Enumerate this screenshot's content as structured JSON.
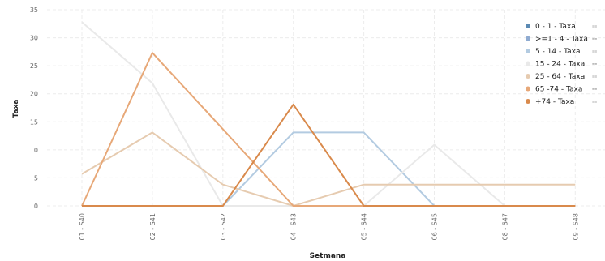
{
  "chart_data": {
    "type": "line",
    "xlabel": "Setmana",
    "ylabel": "Taxa",
    "ylim": [
      0,
      35
    ],
    "yticks": [
      0,
      5,
      10,
      15,
      20,
      25,
      30,
      35
    ],
    "grid": true,
    "legend_position": "top-right",
    "categories": [
      "01 - S40",
      "02 - S41",
      "03 - S42",
      "04 - S43",
      "05 - S44",
      "06 - S45",
      "08 - S47",
      "09 - S48"
    ],
    "series": [
      {
        "name": "0 - 1 - Taxa",
        "color": "#5b8ab3",
        "values": [
          0,
          0,
          0,
          0,
          0,
          0,
          0,
          0
        ]
      },
      {
        "name": ">=1 - 4 - Taxa",
        "color": "#8fabd1",
        "values": [
          0,
          0,
          0,
          0,
          0,
          0,
          0,
          0
        ]
      },
      {
        "name": "5 - 14 - Taxa",
        "color": "#b3cbe1",
        "values": [
          0,
          0,
          0,
          13.1,
          13.1,
          0,
          0,
          0
        ]
      },
      {
        "name": "15 - 24 - Taxa",
        "color": "#e9e9e9",
        "values": [
          32.8,
          21.9,
          0,
          0,
          0,
          10.9,
          0,
          0
        ]
      },
      {
        "name": "25 - 64 - Taxa",
        "color": "#e6cbb0",
        "values": [
          5.7,
          13.1,
          3.8,
          0,
          3.8,
          3.8,
          3.8,
          3.8
        ]
      },
      {
        "name": "65 -74 - Taxa",
        "color": "#e7a878",
        "values": [
          0,
          27.3,
          13.7,
          0,
          0,
          0,
          0,
          0
        ]
      },
      {
        "name": "+74 - Taxa",
        "color": "#d98a4c",
        "values": [
          0,
          0,
          0,
          18.1,
          0,
          0,
          0,
          0
        ]
      }
    ]
  },
  "legend_menu_glyph": "≡≡"
}
